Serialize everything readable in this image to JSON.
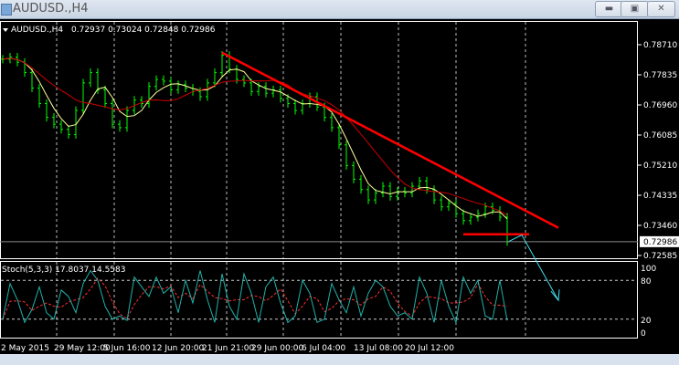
{
  "window": {
    "title": "AUDUSD.,H4",
    "buttons": {
      "minimize": "minimize-icon",
      "restore": "restore-icon",
      "close": "close-icon"
    }
  },
  "chart_header": {
    "symbol": "AUDUSD.,H4",
    "ohlc": "0.72937 0.73024 0.72848 0.72986"
  },
  "indicator_header": "Stoch(5,3,3) 17.8037 14.5583",
  "colors": {
    "background": "#000000",
    "bars": "#00ff00",
    "ma_fast": "#ffff99",
    "ma_slow": "#cc0000",
    "trendline": "#ff0000",
    "stoch_main": "#20b2aa",
    "stoch_signal": "#ff3030",
    "arrow": "#40e0f0"
  },
  "chart_data": [
    {
      "type": "bar",
      "title": "AUDUSD.,H4",
      "price_ticks": [
        "0.78710",
        "0.77835",
        "0.76960",
        "0.76085",
        "0.75210",
        "0.74335",
        "0.73460",
        "0.72585"
      ],
      "current_price": "0.72986",
      "ylim": [
        0.723,
        0.7945
      ],
      "x_tick_labels": [
        "2 May 2015",
        "29 May 12:00",
        "5 Jun 16:00",
        "12 Jun 20:00",
        "21 Jun 21:00",
        "29 Jun 00:00",
        "6 Jul 04:00",
        "13 Jul 08:00",
        "20 Jul 12:00"
      ],
      "grid": true,
      "closes": [
        0.7829,
        0.7835,
        0.782,
        0.779,
        0.7745,
        0.77,
        0.766,
        0.764,
        0.7625,
        0.761,
        0.768,
        0.776,
        0.779,
        0.774,
        0.77,
        0.764,
        0.763,
        0.768,
        0.771,
        0.77,
        0.775,
        0.777,
        0.7765,
        0.774,
        0.7755,
        0.7745,
        0.7735,
        0.772,
        0.776,
        0.779,
        0.784,
        0.78,
        0.777,
        0.776,
        0.7735,
        0.775,
        0.773,
        0.774,
        0.7715,
        0.77,
        0.768,
        0.77,
        0.772,
        0.769,
        0.766,
        0.763,
        0.758,
        0.752,
        0.748,
        0.745,
        0.742,
        0.744,
        0.746,
        0.743,
        0.7445,
        0.744,
        0.746,
        0.7475,
        0.745,
        0.742,
        0.74,
        0.741,
        0.738,
        0.736,
        0.737,
        0.738,
        0.74,
        0.739,
        0.737,
        0.7299
      ],
      "trendlines": [
        {
          "from": {
            "bar": 30,
            "price": 0.7848
          },
          "to": {
            "bar": 76,
            "price": 0.7339
          }
        },
        {
          "from": {
            "bar": 63,
            "price": 0.732
          },
          "to": {
            "bar": 72,
            "price": 0.732
          }
        }
      ],
      "arrow": [
        {
          "bar": 69,
          "price": 0.7297
        },
        {
          "bar": 71,
          "price": 0.7318
        },
        {
          "bar": 76,
          "price": 0.7128
        }
      ]
    },
    {
      "type": "line",
      "title": "Stoch(5,3,3) 17.8037 14.5583",
      "ylim": [
        0,
        100
      ],
      "y_tick_labels": [
        "100",
        "80",
        "20",
        "0"
      ],
      "levels": [
        80,
        20
      ],
      "k": [
        20,
        75,
        50,
        15,
        35,
        70,
        30,
        20,
        65,
        55,
        30,
        75,
        95,
        80,
        40,
        20,
        25,
        18,
        85,
        70,
        55,
        85,
        60,
        70,
        30,
        80,
        45,
        95,
        50,
        15,
        90,
        40,
        20,
        90,
        60,
        15,
        70,
        85,
        45,
        15,
        25,
        80,
        60,
        15,
        20,
        75,
        50,
        30,
        70,
        25,
        60,
        80,
        70,
        40,
        25,
        30,
        20,
        85,
        60,
        15,
        80,
        40,
        15,
        85,
        60,
        80,
        25,
        20,
        80,
        18
      ]
    }
  ]
}
